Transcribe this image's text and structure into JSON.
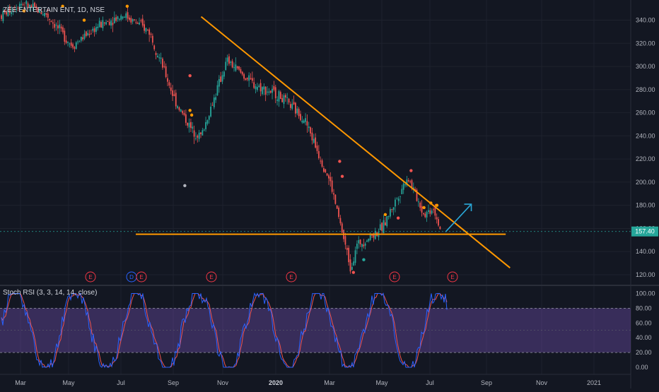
{
  "symbol_title": "ZEE ENTERTAIN ENT, 1D, NSE",
  "indicator_title": "Stoch RSI (3, 3, 14, 14, close)",
  "price_axis": {
    "ticks": [
      "120.00",
      "140.00",
      "160.00",
      "180.00",
      "200.00",
      "220.00",
      "240.00",
      "260.00",
      "280.00",
      "300.00",
      "320.00",
      "340.00"
    ],
    "tick_values": [
      120,
      140,
      160,
      180,
      200,
      220,
      240,
      260,
      280,
      300,
      320,
      340
    ],
    "range": [
      112,
      354
    ]
  },
  "stoch_axis": {
    "ticks": [
      "0.00",
      "20.00",
      "40.00",
      "60.00",
      "80.00",
      "100.00"
    ],
    "tick_values": [
      0,
      20,
      40,
      60,
      80,
      100
    ],
    "band": [
      20,
      80
    ]
  },
  "time_axis": {
    "labels": [
      "Mar",
      "May",
      "Jul",
      "Sep",
      "Nov",
      "2020",
      "Mar",
      "May",
      "Jul",
      "Sep",
      "Nov",
      "2021"
    ],
    "bold": [
      false,
      false,
      false,
      false,
      false,
      true,
      false,
      false,
      false,
      false,
      false,
      false
    ]
  },
  "last_price": {
    "label": "157.40",
    "value": 157.4
  },
  "event_markers": [
    {
      "label": "E",
      "color": "#f23645"
    },
    {
      "label": "D",
      "color": "#2962ff"
    },
    {
      "label": "E",
      "color": "#f23645"
    },
    {
      "label": "E",
      "color": "#f23645"
    },
    {
      "label": "E",
      "color": "#f23645"
    },
    {
      "label": "E",
      "color": "#f23645"
    },
    {
      "label": "E",
      "color": "#f23645"
    }
  ],
  "colors": {
    "background": "#131722",
    "grid": "#1e222d",
    "up": "#26a69a",
    "down": "#ef5350",
    "trendline": "#ff9800",
    "arrow": "#2aa8d8",
    "stoch_k": "#2962ff",
    "stoch_d": "#ef5350",
    "stoch_band": "#7e57c2",
    "last_price_tag": "#26a69a"
  },
  "chart_data": {
    "type": "candlestick",
    "title": "ZEE ENTERTAIN ENT, 1D, NSE",
    "x_range": [
      "2019-02",
      "2021-02"
    ],
    "y_range": [
      112,
      354
    ],
    "approx_close_path": [
      {
        "date": "2019-02",
        "close": 340
      },
      {
        "date": "2019-03",
        "close": 355
      },
      {
        "date": "2019-04",
        "close": 345
      },
      {
        "date": "2019-05",
        "close": 318
      },
      {
        "date": "2019-06",
        "close": 335
      },
      {
        "date": "2019-07",
        "close": 345
      },
      {
        "date": "2019-08",
        "close": 330
      },
      {
        "date": "2019-09",
        "close": 270
      },
      {
        "date": "2019-09-20",
        "close": 245
      },
      {
        "date": "2019-10",
        "close": 240
      },
      {
        "date": "2019-11",
        "close": 305
      },
      {
        "date": "2019-12",
        "close": 285
      },
      {
        "date": "2020-01",
        "close": 275
      },
      {
        "date": "2020-02",
        "close": 255
      },
      {
        "date": "2020-03",
        "close": 200
      },
      {
        "date": "2020-03-25",
        "close": 125
      },
      {
        "date": "2020-04",
        "close": 145
      },
      {
        "date": "2020-05",
        "close": 160
      },
      {
        "date": "2020-06",
        "close": 205
      },
      {
        "date": "2020-06-20",
        "close": 172
      },
      {
        "date": "2020-07",
        "close": 178
      },
      {
        "date": "2020-07-10",
        "close": 157.4
      }
    ],
    "trendlines": [
      {
        "name": "descending",
        "from": {
          "date": "2019-10",
          "price": 343
        },
        "to": {
          "date": "2020-09-30",
          "price": 126
        }
      },
      {
        "name": "support",
        "from": {
          "date": "2019-07-15",
          "price": 155
        },
        "to": {
          "date": "2020-09-25",
          "price": 155
        }
      }
    ],
    "projection_arrow": {
      "from": {
        "date": "2020-07-15",
        "price": 157
      },
      "to": {
        "date": "2020-08-15",
        "price": 181
      }
    },
    "stoch_rsi": {
      "params": "3, 3, 14, 14, close",
      "overbought": 80,
      "oversold": 20,
      "range": [
        0,
        100
      ]
    }
  }
}
